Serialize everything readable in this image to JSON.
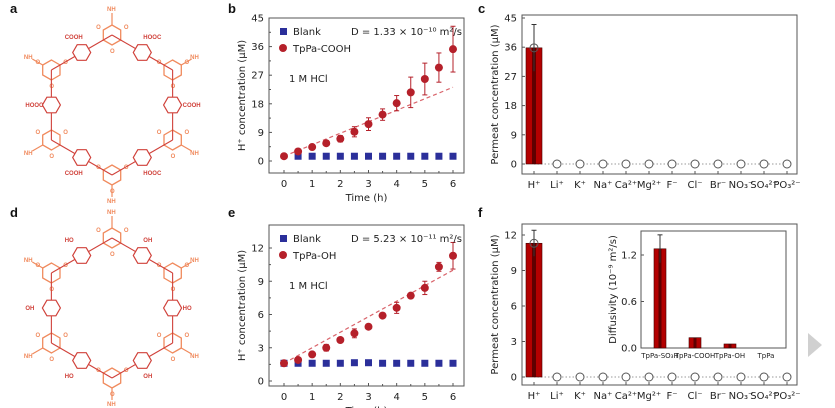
{
  "figure": {
    "panels": {
      "a": {
        "label": "a",
        "description": "TpPa-COOH COF pore structure",
        "groups": [
          "HOOC",
          "COOH",
          "NH",
          "HN",
          "O"
        ]
      },
      "b": {
        "label": "b"
      },
      "c": {
        "label": "c"
      },
      "d": {
        "label": "d",
        "description": "TpPa-OH COF pore structure",
        "groups": [
          "OH",
          "HO",
          "NH",
          "HN",
          "O"
        ]
      },
      "e": {
        "label": "e"
      },
      "f": {
        "label": "f"
      }
    },
    "colors": {
      "blank": "#2b2f9a",
      "sample": "#b5202a",
      "bar": "#b30000",
      "fit": "#d9646b",
      "linker_light": "#f08a5d",
      "linker_dark": "#d0413a"
    },
    "next_arrow_icon": "triangle-right"
  },
  "chart_data": [
    {
      "id": "b",
      "type": "scatter",
      "title": "",
      "xlabel": "Time (h)",
      "ylabel": "H⁺ concentration (μM)",
      "xlim": [
        -0.4,
        6.4
      ],
      "ylim": [
        -4,
        45
      ],
      "xticks": [
        0,
        1,
        2,
        3,
        4,
        5,
        6
      ],
      "yticks": [
        0,
        9,
        18,
        27,
        36,
        45
      ],
      "annotations": [
        "D = 1.33 × 10⁻¹⁰ m²/s",
        "1 M HCl"
      ],
      "legend": {
        "position": "top-left",
        "entries": [
          "Blank",
          "TpPa-COOH"
        ]
      },
      "series": [
        {
          "name": "Blank",
          "marker": "square",
          "x": [
            0.5,
            1,
            1.5,
            2,
            2.5,
            3,
            3.5,
            4,
            4.5,
            5,
            5.5,
            6
          ],
          "y": [
            1.5,
            1.5,
            1.5,
            1.5,
            1.5,
            1.5,
            1.5,
            1.5,
            1.5,
            1.5,
            1.5,
            1.5
          ]
        },
        {
          "name": "TpPa-COOH",
          "marker": "circle",
          "x": [
            0,
            0.5,
            1,
            1.5,
            2,
            2.5,
            3,
            3.5,
            4,
            4.5,
            5,
            5.5,
            6
          ],
          "y": [
            1.5,
            3.0,
            4.4,
            5.6,
            7.0,
            9.2,
            11.6,
            14.6,
            18.2,
            21.6,
            25.8,
            29.4,
            35.2
          ],
          "err": [
            0.5,
            0.8,
            0.8,
            0.8,
            1.0,
            1.6,
            2.0,
            1.8,
            2.4,
            4.8,
            5.0,
            4.6,
            7.2
          ]
        },
        {
          "name": "fit",
          "style": "dashed",
          "x": [
            0,
            6
          ],
          "y": [
            1.5,
            23.2
          ]
        }
      ]
    },
    {
      "id": "c",
      "type": "bar",
      "xlabel": "",
      "ylabel": "Permeat concentration (μM)",
      "ylim": [
        -2,
        45
      ],
      "yticks": [
        0,
        9,
        18,
        27,
        36,
        45
      ],
      "categories": [
        "H⁺",
        "Li⁺",
        "K⁺",
        "Na⁺",
        "Ca²⁺",
        "Mg²⁺",
        "F⁻",
        "Cl⁻",
        "Br⁻",
        "NO₃⁻",
        "SO₄²⁻",
        "PO₃²⁻"
      ],
      "values": [
        35.8,
        0,
        0,
        0,
        0,
        0,
        0,
        0,
        0,
        0,
        0,
        0
      ],
      "err": [
        7.2,
        0,
        0,
        0,
        0,
        0,
        0,
        0,
        0,
        0,
        0,
        0
      ]
    },
    {
      "id": "e",
      "type": "scatter",
      "xlabel": "Time (h)",
      "ylabel": "H⁺ concentration (μM)",
      "xlim": [
        -0.4,
        6.4
      ],
      "ylim": [
        0,
        14
      ],
      "xticks": [
        0,
        1,
        2,
        3,
        4,
        5,
        6
      ],
      "yticks": [
        0,
        3,
        6,
        9,
        12
      ],
      "annotations": [
        "D = 5.23 × 10⁻¹¹ m²/s",
        "1 M HCl"
      ],
      "legend": {
        "position": "top-left",
        "entries": [
          "Blank",
          "TpPa-OH"
        ]
      },
      "series": [
        {
          "name": "Blank",
          "marker": "square",
          "x": [
            0,
            0.5,
            1,
            1.5,
            2,
            2.5,
            3,
            3.5,
            4,
            4.5,
            5,
            5.5,
            6
          ],
          "y": [
            1.6,
            1.6,
            1.6,
            1.6,
            1.6,
            1.65,
            1.65,
            1.6,
            1.6,
            1.6,
            1.6,
            1.6,
            1.6
          ]
        },
        {
          "name": "TpPa-OH",
          "marker": "circle",
          "x": [
            0,
            0.5,
            1,
            1.5,
            2,
            2.5,
            3,
            3.5,
            4,
            4.5,
            5,
            5.5,
            6
          ],
          "y": [
            1.6,
            1.9,
            2.4,
            3.0,
            3.7,
            4.3,
            4.9,
            5.9,
            6.6,
            7.7,
            8.4,
            10.3,
            11.3
          ],
          "err": [
            0.1,
            0.2,
            0.2,
            0.3,
            0.2,
            0.4,
            0.2,
            0.2,
            0.5,
            0.2,
            0.6,
            0.4,
            1.2
          ]
        },
        {
          "name": "fit",
          "style": "dashed",
          "x": [
            0,
            6
          ],
          "y": [
            1.6,
            10.0
          ]
        }
      ]
    },
    {
      "id": "f",
      "type": "bar",
      "xlabel": "",
      "ylabel": "Permeat concentration (μM)",
      "ylim": [
        -0.6,
        12.8
      ],
      "yticks": [
        0,
        3,
        6,
        9,
        12
      ],
      "categories": [
        "H⁺",
        "Li⁺",
        "K⁺",
        "Na⁺",
        "Ca²⁺",
        "Mg²⁺",
        "F⁻",
        "Cl⁻",
        "Br⁻",
        "NO₃⁻",
        "SO₄²⁻",
        "PO₃²⁻"
      ],
      "values": [
        11.3,
        0,
        0,
        0,
        0,
        0,
        0,
        0,
        0,
        0,
        0,
        0
      ],
      "err": [
        1.1,
        0,
        0,
        0,
        0,
        0,
        0,
        0,
        0,
        0,
        0,
        0
      ],
      "inset": {
        "type": "bar",
        "ylabel": "Diffusivity (10⁻⁹ m²/s)",
        "ylim": [
          0,
          1.5
        ],
        "yticks": [
          0.0,
          0.6,
          1.2
        ],
        "categories": [
          "TpPa-SO₃H",
          "TpPa-COOH",
          "TpPa-OH",
          "TpPa"
        ],
        "values": [
          1.28,
          0.133,
          0.052,
          0
        ],
        "err": [
          0.18,
          0.01,
          0.005,
          0
        ]
      }
    }
  ]
}
